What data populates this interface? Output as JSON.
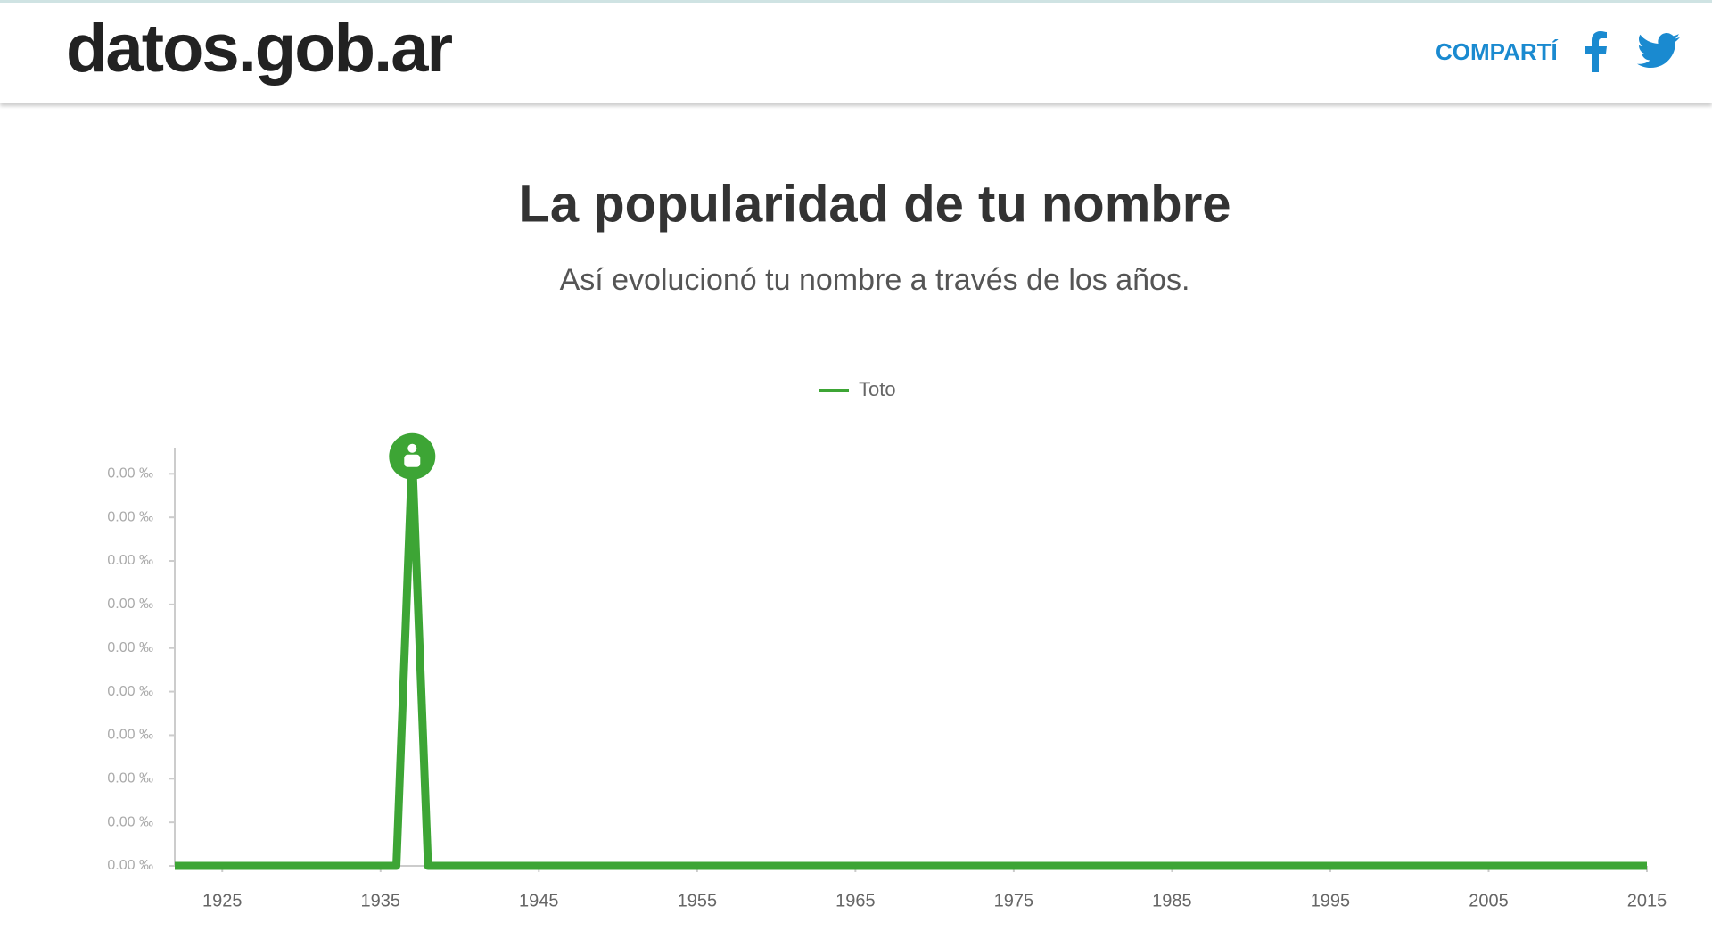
{
  "header": {
    "logo": "datos.gob.ar",
    "share": "COMPARTÍ"
  },
  "chart_data": {
    "type": "line",
    "title": "La popularidad de tu nombre",
    "subtitle": "Así evolucionó tu nombre a través de los años.",
    "x": [
      1922,
      1923,
      1924,
      1925,
      1926,
      1927,
      1928,
      1929,
      1930,
      1931,
      1932,
      1933,
      1934,
      1935,
      1936,
      1937,
      1938,
      1939,
      1940,
      1941,
      1942,
      1943,
      1944,
      1945,
      1946,
      1947,
      1948,
      1949,
      1950,
      1951,
      1952,
      1953,
      1954,
      1955,
      1956,
      1957,
      1958,
      1959,
      1960,
      1961,
      1962,
      1963,
      1964,
      1965,
      1966,
      1967,
      1968,
      1969,
      1970,
      1971,
      1972,
      1973,
      1974,
      1975,
      1976,
      1977,
      1978,
      1979,
      1980,
      1981,
      1982,
      1983,
      1984,
      1985,
      1986,
      1987,
      1988,
      1989,
      1990,
      1991,
      1992,
      1993,
      1994,
      1995,
      1996,
      1997,
      1998,
      1999,
      2000,
      2001,
      2002,
      2003,
      2004,
      2005,
      2006,
      2007,
      2008,
      2009,
      2010,
      2011,
      2012,
      2013,
      2014,
      2015
    ],
    "series": [
      {
        "name": "Toto",
        "color": "#3da535",
        "values": [
          0,
          0,
          0,
          0,
          0,
          0,
          0,
          0,
          0,
          0,
          0,
          0,
          0,
          0,
          0,
          0.0047,
          0,
          0,
          0,
          0,
          0,
          0,
          0,
          0,
          0,
          0,
          0,
          0,
          0,
          0,
          0,
          0,
          0,
          0,
          0,
          0,
          0,
          0,
          0,
          0,
          0,
          0,
          0,
          0,
          0,
          0,
          0,
          0,
          0,
          0,
          0,
          0,
          0,
          0,
          0,
          0,
          0,
          0,
          0,
          0,
          0,
          0,
          0,
          0,
          0,
          0,
          0,
          0,
          0,
          0,
          0,
          0,
          0,
          0,
          0,
          0,
          0,
          0,
          0,
          0,
          0,
          0,
          0,
          0,
          0,
          0,
          0,
          0,
          0,
          0,
          0,
          0,
          0,
          0
        ]
      }
    ],
    "xlim": [
      1922,
      2015
    ],
    "xticks": [
      1925,
      1935,
      1945,
      1955,
      1965,
      1975,
      1985,
      1995,
      2005,
      2015
    ],
    "ylim": [
      0,
      0.0048
    ],
    "yticks": [
      {
        "value": 0,
        "label": "0.00 ‰"
      },
      {
        "value": 0.0005,
        "label": "0.00 ‰"
      },
      {
        "value": 0.001,
        "label": "0.00 ‰"
      },
      {
        "value": 0.0015,
        "label": "0.00 ‰"
      },
      {
        "value": 0.002,
        "label": "0.00 ‰"
      },
      {
        "value": 0.0025,
        "label": "0.00 ‰"
      },
      {
        "value": 0.003,
        "label": "0.00 ‰"
      },
      {
        "value": 0.0035,
        "label": "0.00 ‰"
      },
      {
        "value": 0.004,
        "label": "0.00 ‰"
      },
      {
        "value": 0.0045,
        "label": "0.00 ‰"
      }
    ],
    "legend": "top"
  }
}
